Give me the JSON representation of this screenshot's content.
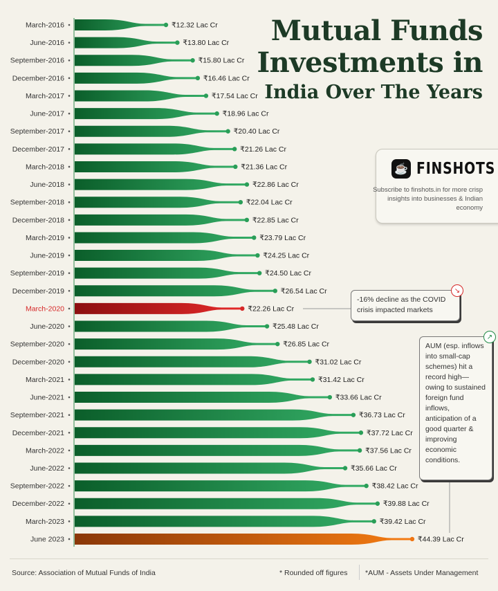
{
  "title": {
    "line1": "Mutual Funds",
    "line2": "Investments in",
    "line3": "India Over The Years"
  },
  "brand": {
    "name": "FINSHOTS",
    "icon": "finshots-cup-logo",
    "tagline": "Subscribe to finshots.in for more crisp insights into businesses & Indian economy"
  },
  "annotations": [
    {
      "text": "-16% decline as the COVID crisis impacted markets",
      "icon": "trend-down-icon",
      "color": "#d62828"
    },
    {
      "text": "AUM (esp. inflows into small-cap schemes) hit a record high—owing to sustained foreign fund inflows, anticipation of a good quarter & improving economic conditions.",
      "icon": "trend-up-icon",
      "color": "#1f8a45"
    }
  ],
  "footer": {
    "source": "Source: Association of Mutual Funds of India",
    "note1": "* Rounded off figures",
    "note2": "*AUM - Assets Under Management"
  },
  "colors": {
    "normal": "#239a52",
    "decline": "#d62828",
    "latest": "#ef7512",
    "title": "#1d3a26",
    "background": "#f4f2ea"
  },
  "chart_data": {
    "type": "bar",
    "orientation": "horizontal",
    "value_format": "₹{v} Lac Cr",
    "categories": [
      "March-2016",
      "June-2016",
      "September-2016",
      "December-2016",
      "March-2017",
      "June-2017",
      "September-2017",
      "December-2017",
      "March-2018",
      "June-2018",
      "September-2018",
      "December-2018",
      "March-2019",
      "June-2019",
      "September-2019",
      "December-2019",
      "March-2020",
      "June-2020",
      "September-2020",
      "December-2020",
      "March-2021",
      "June-2021",
      "September-2021",
      "December-2021",
      "March-2022",
      "June-2022",
      "September-2022",
      "December-2022",
      "March-2023",
      "June 2023"
    ],
    "values": [
      12.32,
      13.8,
      15.8,
      16.46,
      17.54,
      18.96,
      20.4,
      21.26,
      21.36,
      22.86,
      22.04,
      22.85,
      23.79,
      24.25,
      24.5,
      26.54,
      22.26,
      25.48,
      26.85,
      31.02,
      31.42,
      33.66,
      36.73,
      37.72,
      37.56,
      35.66,
      38.42,
      39.88,
      39.42,
      44.39
    ],
    "labels": [
      "₹12.32 Lac Cr",
      "₹13.80 Lac Cr",
      "₹15.80 Lac Cr",
      "₹16.46 Lac Cr",
      "₹17.54 Lac Cr",
      "₹18.96 Lac Cr",
      "₹20.40 Lac Cr",
      "₹21.26 Lac Cr",
      "₹21.36 Lac Cr",
      "₹22.86 Lac Cr",
      "₹22.04 Lac Cr",
      "₹22.85 Lac Cr",
      "₹23.79 Lac Cr",
      "₹24.25 Lac Cr",
      "₹24.50 Lac Cr",
      "₹26.54 Lac Cr",
      "₹22.26 Lac Cr",
      "₹25.48 Lac Cr",
      "₹26.85 Lac Cr",
      "₹31.02 Lac Cr",
      "₹31.42 Lac Cr",
      "₹33.66 Lac Cr",
      "₹36.73 Lac Cr",
      "₹37.72 Lac Cr",
      "₹37.56 Lac Cr",
      "₹35.66 Lac Cr",
      "₹38.42 Lac Cr",
      "₹39.88 Lac Cr",
      "₹39.42 Lac Cr",
      "₹44.39 Lac Cr"
    ],
    "highlight": {
      "March-2020": "decline",
      "June 2023": "latest"
    },
    "grid": false,
    "legend": "none"
  }
}
